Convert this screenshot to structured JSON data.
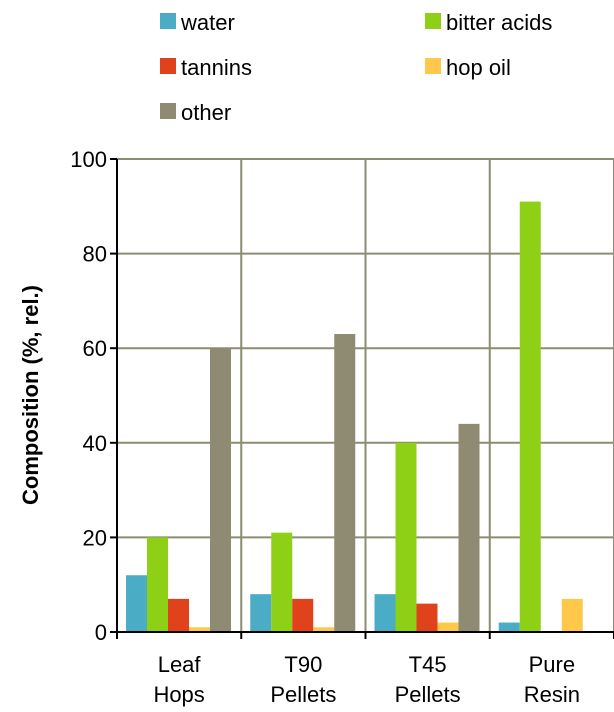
{
  "chart_data": {
    "type": "bar",
    "categories": [
      [
        "Leaf",
        "Hops"
      ],
      [
        "T90",
        "Pellets"
      ],
      [
        "T45",
        "Pellets"
      ],
      [
        "Pure",
        "Resin"
      ]
    ],
    "series": [
      {
        "name": "water",
        "color": "#4BACC6",
        "values": [
          12,
          8,
          8,
          2
        ]
      },
      {
        "name": "bitter acids",
        "color": "#8ED016",
        "values": [
          20,
          21,
          40,
          91
        ]
      },
      {
        "name": "tannins",
        "color": "#E0421B",
        "values": [
          7,
          7,
          6,
          0
        ]
      },
      {
        "name": "hop oil",
        "color": "#FFC84A",
        "values": [
          1,
          1,
          2,
          7
        ]
      },
      {
        "name": "other",
        "color": "#8E8B72",
        "values": [
          60,
          63,
          44,
          0
        ]
      }
    ],
    "ylabel": "Composition (%, rel.)",
    "xlabel": "",
    "ylim": [
      0,
      100
    ],
    "yticks": [
      0,
      20,
      40,
      60,
      80,
      100
    ],
    "grid": "horizontal and vertical",
    "legend_position": "top"
  }
}
